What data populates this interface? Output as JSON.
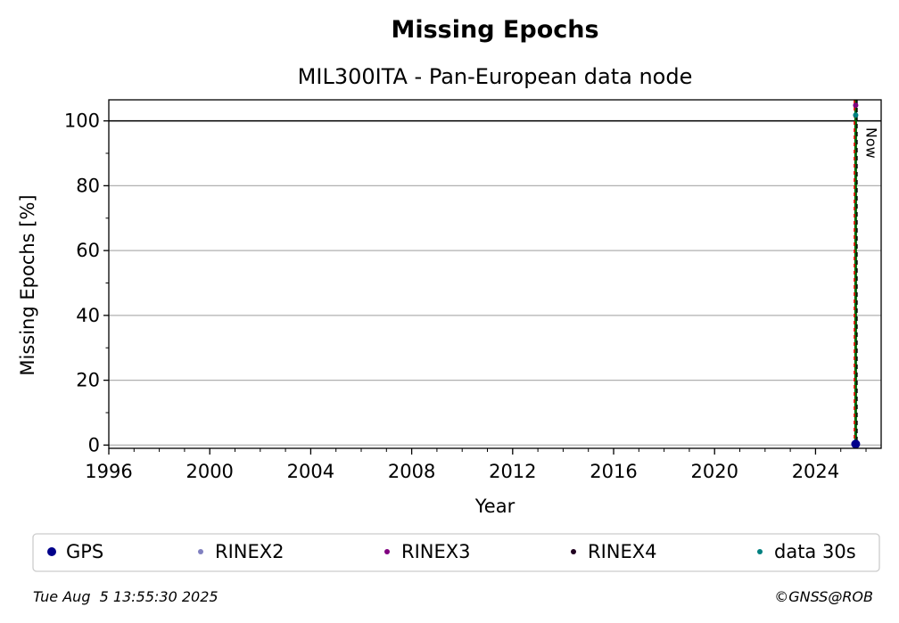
{
  "chart_data": {
    "type": "scatter",
    "title": "Missing Epochs",
    "subtitle": "MIL300ITA - Pan-European data node",
    "xlabel": "Year",
    "ylabel": "Missing Epochs [%]",
    "xlim": [
      1996,
      2026.6
    ],
    "ylim": [
      -1,
      106.5
    ],
    "xticks": [
      1996,
      2000,
      2004,
      2008,
      2012,
      2016,
      2020,
      2024
    ],
    "yticks": [
      0,
      20,
      40,
      60,
      80,
      100
    ],
    "grid": true,
    "reference_line_y": 100,
    "now_x": 2025.59,
    "now_label": "Now",
    "legend_position": "bottom",
    "series": [
      {
        "name": "GPS",
        "color": "#00008b",
        "marker_size": 5,
        "points": [
          [
            2025.59,
            0.3
          ]
        ]
      },
      {
        "name": "RINEX2",
        "color": "#8080c0",
        "marker_size": 3,
        "points": []
      },
      {
        "name": "RINEX3",
        "color": "#800080",
        "marker_size": 3,
        "points": [
          [
            2025.59,
            104.8
          ]
        ]
      },
      {
        "name": "RINEX4",
        "color": "#200020",
        "marker_size": 3,
        "points": []
      },
      {
        "name": "data 30s",
        "color": "#008080",
        "marker_size": 3,
        "points": [
          [
            2025.59,
            101.8
          ]
        ]
      }
    ]
  },
  "footer": {
    "timestamp": "Tue Aug  5 13:55:30 2025",
    "credit": "©GNSS@ROB"
  }
}
